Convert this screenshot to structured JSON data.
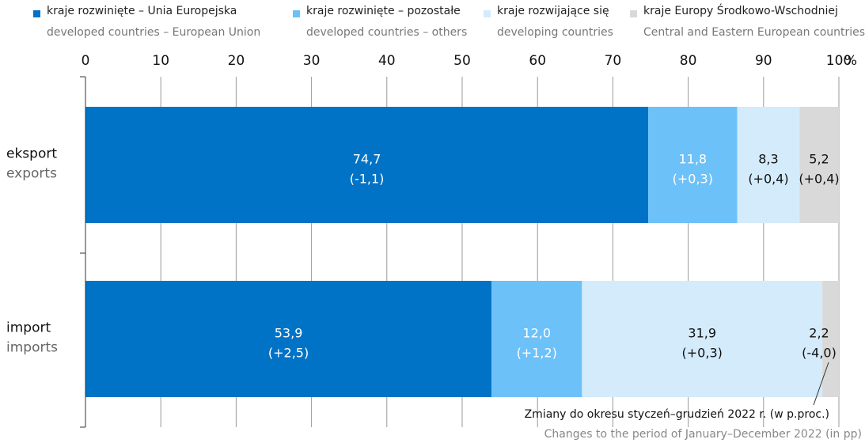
{
  "chart_data": {
    "type": "bar",
    "orientation": "horizontal",
    "stacked": true,
    "unit": "%",
    "xlim": [
      0,
      100
    ],
    "x_ticks": [
      "0",
      "10",
      "20",
      "30",
      "40",
      "50",
      "60",
      "70",
      "80",
      "90",
      "100"
    ],
    "grid": true,
    "legend_position": "top",
    "categories": [
      {
        "label": "eksport",
        "label_en": "exports"
      },
      {
        "label": "import",
        "label_en": "imports"
      }
    ],
    "series": [
      {
        "name": "kraje rozwinięte – Unia Europejska",
        "name_en": "developed countries – European Union",
        "color": "#0073C6",
        "text_color": "#ffffff",
        "values": [
          74.7,
          53.9
        ],
        "value_labels": [
          "74,7",
          "53,9"
        ],
        "change_labels": [
          "(-1,1)",
          "(+2,5)"
        ]
      },
      {
        "name": "kraje rozwinięte – pozostałe",
        "name_en": "developed countries – others",
        "color": "#6CC1F9",
        "text_color": "#ffffff",
        "values": [
          11.8,
          12.0
        ],
        "value_labels": [
          "11,8",
          "12,0"
        ],
        "change_labels": [
          "(+0,3)",
          "(+1,2)"
        ]
      },
      {
        "name": "kraje rozwijające się",
        "name_en": "developing countries",
        "color": "#D4EBFB",
        "text_color": "#111111",
        "values": [
          8.3,
          31.9
        ],
        "value_labels": [
          "8,3",
          "31,9"
        ],
        "change_labels": [
          "(+0,4)",
          "(+0,3)"
        ]
      },
      {
        "name": "kraje Europy Środkowo-Wschodniej",
        "name_en": "Central and Eastern European countries",
        "color": "#D9D9D9",
        "text_color": "#111111",
        "values": [
          5.2,
          2.2
        ],
        "value_labels": [
          "5,2",
          "2,2"
        ],
        "change_labels": [
          "(+0,4)",
          "(-4,0)"
        ]
      }
    ],
    "annotation": {
      "text": "Zmiany do okresu styczeń–grudzień 2022 r. (w p.proc.)",
      "text_en": "Changes to the period of January–December 2022 (in pp)"
    }
  }
}
